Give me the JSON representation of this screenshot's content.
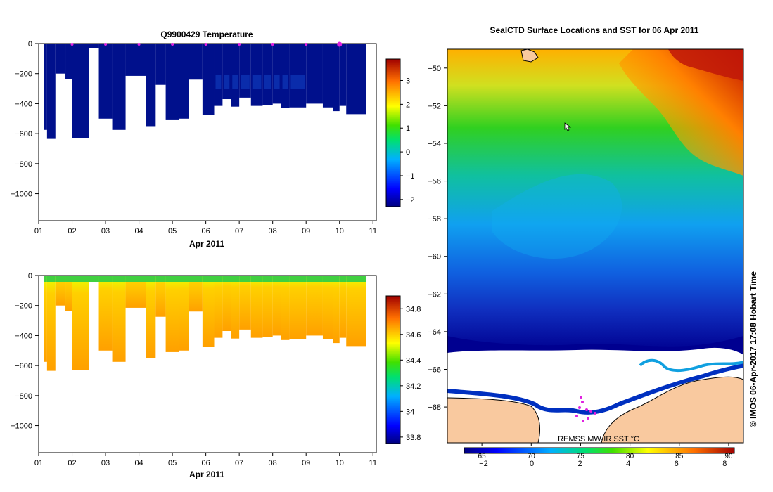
{
  "chart_data": [
    {
      "type": "heatmap",
      "title": "Q9900429  Temperature",
      "xlabel": "Apr 2011",
      "ylabel": "",
      "x_ticks": [
        "01",
        "02",
        "03",
        "04",
        "05",
        "06",
        "07",
        "08",
        "09",
        "10",
        "11"
      ],
      "y_ticks": [
        0,
        -200,
        -400,
        -600,
        -800,
        -1000
      ],
      "xlim": [
        1,
        11.1
      ],
      "ylim": [
        -1180,
        0
      ],
      "colorbar_ticks": [
        3,
        2,
        1,
        0,
        -1,
        -2
      ],
      "colorbar_range": [
        -2.3,
        3.9
      ],
      "surfacing_markers": [
        2.0,
        3.0,
        4.0,
        5.0,
        6.0,
        7.0,
        8.0,
        9.0,
        10.0
      ],
      "highlight_marker": 10.0,
      "profile_bottoms": [
        {
          "x0": 1.15,
          "x1": 1.25,
          "depth": -575
        },
        {
          "x0": 1.25,
          "x1": 1.5,
          "depth": -635
        },
        {
          "x0": 1.5,
          "x1": 1.8,
          "depth": -200
        },
        {
          "x0": 1.8,
          "x1": 2.0,
          "depth": -235
        },
        {
          "x0": 2.0,
          "x1": 2.5,
          "depth": -630
        },
        {
          "x0": 2.5,
          "x1": 2.8,
          "depth": -30
        },
        {
          "x0": 2.8,
          "x1": 3.2,
          "depth": -500
        },
        {
          "x0": 3.2,
          "x1": 3.6,
          "depth": -575
        },
        {
          "x0": 3.6,
          "x1": 4.2,
          "depth": -215
        },
        {
          "x0": 4.2,
          "x1": 4.5,
          "depth": -550
        },
        {
          "x0": 4.5,
          "x1": 4.8,
          "depth": -275
        },
        {
          "x0": 4.8,
          "x1": 5.2,
          "depth": -510
        },
        {
          "x0": 5.2,
          "x1": 5.5,
          "depth": -500
        },
        {
          "x0": 5.5,
          "x1": 5.9,
          "depth": -240
        },
        {
          "x0": 5.9,
          "x1": 6.25,
          "depth": -475
        },
        {
          "x0": 6.25,
          "x1": 6.5,
          "depth": -415
        },
        {
          "x0": 6.5,
          "x1": 6.75,
          "depth": -370
        },
        {
          "x0": 6.75,
          "x1": 7.0,
          "depth": -420
        },
        {
          "x0": 7.0,
          "x1": 7.35,
          "depth": -360
        },
        {
          "x0": 7.35,
          "x1": 7.7,
          "depth": -415
        },
        {
          "x0": 7.7,
          "x1": 8.0,
          "depth": -410
        },
        {
          "x0": 8.0,
          "x1": 8.25,
          "depth": -400
        },
        {
          "x0": 8.25,
          "x1": 8.5,
          "depth": -430
        },
        {
          "x0": 8.5,
          "x1": 9.0,
          "depth": -425
        },
        {
          "x0": 9.0,
          "x1": 9.5,
          "depth": -400
        },
        {
          "x0": 9.5,
          "x1": 9.8,
          "depth": -425
        },
        {
          "x0": 9.8,
          "x1": 10.0,
          "depth": -450
        },
        {
          "x0": 10.0,
          "x1": 10.2,
          "depth": -415
        },
        {
          "x0": 10.2,
          "x1": 10.8,
          "depth": -470
        }
      ]
    },
    {
      "type": "heatmap",
      "title": "",
      "xlabel": "Apr 2011",
      "ylabel": "",
      "x_ticks": [
        "01",
        "02",
        "03",
        "04",
        "05",
        "06",
        "07",
        "08",
        "09",
        "10",
        "11"
      ],
      "y_ticks": [
        0,
        -200,
        -400,
        -600,
        -800,
        -1000
      ],
      "xlim": [
        1,
        11.1
      ],
      "ylim": [
        -1180,
        0
      ],
      "colorbar_ticks": [
        34.8,
        34.6,
        34.4,
        34.2,
        34,
        33.8
      ],
      "colorbar_range": [
        33.75,
        34.9
      ],
      "profile_bottoms": "same as temperature section"
    },
    {
      "type": "heatmap",
      "title": "SealCTD Surface Locations and SST for 06 Apr 2011",
      "xlabel": "",
      "ylabel": "",
      "x_ticks": [
        "65",
        "70",
        "75",
        "80",
        "85",
        "90"
      ],
      "y_ticks": [
        -50,
        -52,
        -54,
        -56,
        -58,
        -60,
        -62,
        -64,
        -66,
        -68
      ],
      "xlim": [
        61.5,
        91.5
      ],
      "ylim": [
        -69.9,
        -49
      ],
      "colorbar_label": "REMSS MW-IR SST °C",
      "colorbar_ticks": [
        -2,
        0,
        2,
        4,
        6,
        8
      ],
      "colorbar_range": [
        -2.8,
        8.4
      ],
      "credit": "© IMOS 06-Apr-2017 17:08 Hobart Time"
    }
  ],
  "colors": {
    "land": "#f9c99f",
    "ice": "#ffffff",
    "marker": "#e020e0"
  }
}
